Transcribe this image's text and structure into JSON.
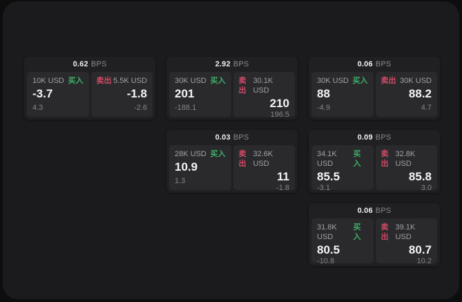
{
  "labels": {
    "bps": "BPS",
    "buy": "买入",
    "sell": "卖出"
  },
  "colors": {
    "buy": "#3fae68",
    "sell": "#cf4a66",
    "panel": "#1b1b1d",
    "card": "#202023",
    "cell": "#2a2a2d"
  },
  "cards": [
    {
      "bps": "0.62",
      "row": 1,
      "col": 1,
      "buy": {
        "size": "10K USD",
        "value": "-3.7",
        "delta": "4.3"
      },
      "sell": {
        "size": "5.5K USD",
        "value": "-1.8",
        "delta": "-2.6"
      }
    },
    {
      "bps": "2.92",
      "row": 1,
      "col": 2,
      "buy": {
        "size": "30K USD",
        "value": "201",
        "delta": "-188.1"
      },
      "sell": {
        "size": "30.1K USD",
        "value": "210",
        "delta": "196.5"
      }
    },
    {
      "bps": "0.06",
      "row": 1,
      "col": 3,
      "buy": {
        "size": "30K USD",
        "value": "88",
        "delta": "-4.9"
      },
      "sell": {
        "size": "30K USD",
        "value": "88.2",
        "delta": "4.7"
      }
    },
    {
      "bps": "0.03",
      "row": 2,
      "col": 2,
      "buy": {
        "size": "28K USD",
        "value": "10.9",
        "delta": "1.3"
      },
      "sell": {
        "size": "32.6K USD",
        "value": "11",
        "delta": "-1.8"
      }
    },
    {
      "bps": "0.09",
      "row": 2,
      "col": 3,
      "buy": {
        "size": "34.1K USD",
        "value": "85.5",
        "delta": "-3.1"
      },
      "sell": {
        "size": "32.8K USD",
        "value": "85.8",
        "delta": "3.0"
      }
    },
    {
      "bps": "0.06",
      "row": 3,
      "col": 3,
      "buy": {
        "size": "31.8K USD",
        "value": "80.5",
        "delta": "-10.8"
      },
      "sell": {
        "size": "39.1K USD",
        "value": "80.7",
        "delta": "10.2"
      }
    }
  ]
}
